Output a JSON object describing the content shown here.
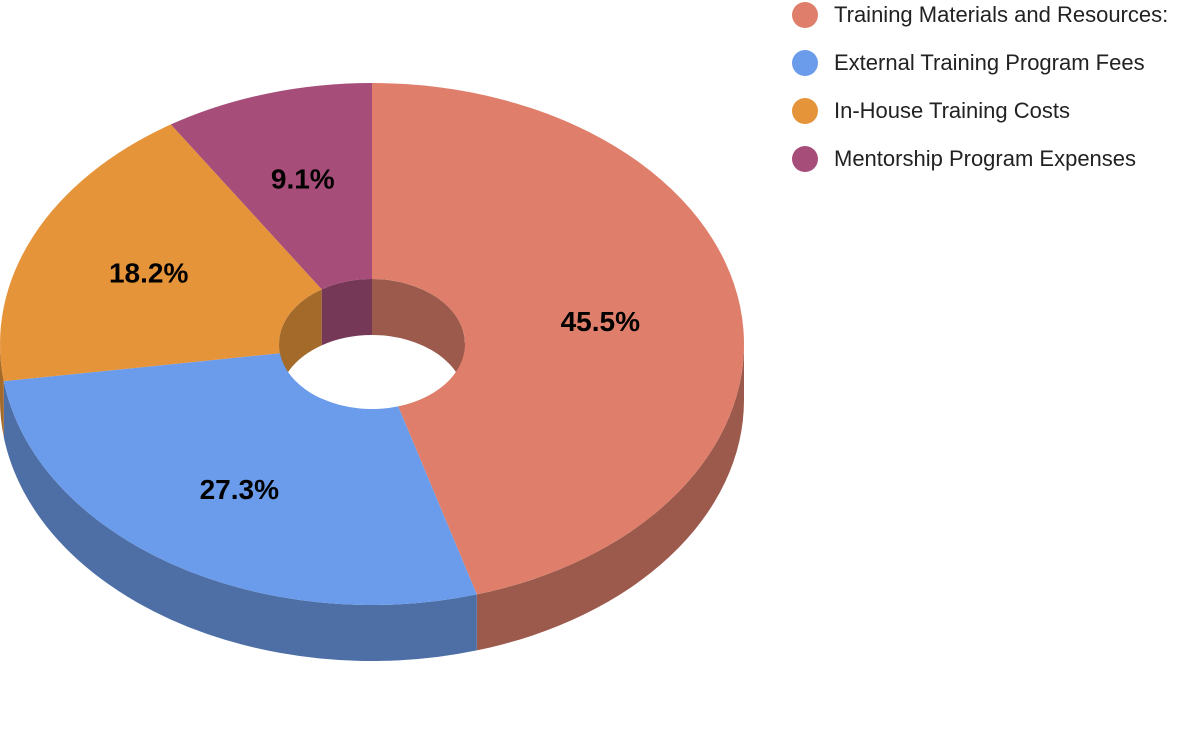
{
  "chart_data": {
    "type": "pie",
    "style": "3d-donut",
    "categories": [
      "Training Materials and Resources:",
      "External Training Program Fees",
      "In-House Training Costs",
      "Mentorship Program Expenses"
    ],
    "values": [
      45.5,
      27.3,
      18.2,
      9.1
    ],
    "data_labels": [
      "45.5%",
      "27.3%",
      "18.2%",
      "9.1%"
    ],
    "colors": [
      "#df7f6b",
      "#6b9ceb",
      "#e6943a",
      "#a64d79"
    ],
    "side_colors": [
      "#9c5a4d",
      "#4d6fa6",
      "#a46a2a",
      "#753856"
    ],
    "legend_placement": "top-right",
    "title": ""
  },
  "legend": {
    "items": [
      {
        "label": "Training Materials and Resources:",
        "color": "#df7f6b"
      },
      {
        "label": "External Training Program Fees",
        "color": "#6b9ceb"
      },
      {
        "label": "In-House Training Costs",
        "color": "#e6943a"
      },
      {
        "label": "Mentorship Program Expenses",
        "color": "#a64d79"
      }
    ]
  }
}
